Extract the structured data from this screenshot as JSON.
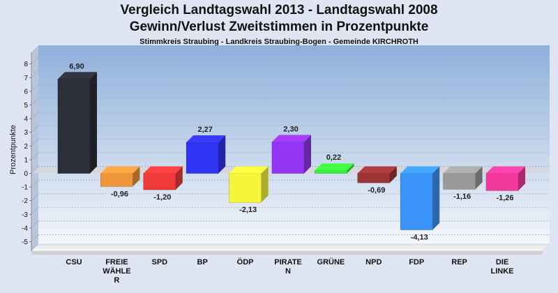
{
  "header": {
    "title_line1": "Vergleich Landtagswahl 2013 - Landtagswahl 2008",
    "title_line2": "Gewinn/Verlust Zweitstimmen in Prozentpunkte",
    "subtitle": "Stimmkreis Straubing - Landkreis Straubing-Bogen - Gemeinde KIRCHROTH"
  },
  "chart_data": {
    "type": "bar",
    "title": "Vergleich Landtagswahl 2013 - Landtagswahl 2008 / Gewinn/Verlust Zweitstimmen in Prozentpunkte",
    "subtitle": "Stimmkreis Straubing - Landkreis Straubing-Bogen - Gemeinde KIRCHROTH",
    "xlabel": "",
    "ylabel": "Prozentpunkte",
    "ylim": [
      -5.5,
      8.5
    ],
    "yticks": [
      8,
      7,
      6,
      5,
      4,
      3,
      2,
      1,
      0,
      -1,
      -2,
      -3,
      -4,
      -5
    ],
    "grid": true,
    "categories": [
      "CSU",
      "FREIE WÄHLER",
      "SPD",
      "BP",
      "ÖDP",
      "PIRATEN",
      "GRÜNE",
      "NPD",
      "FDP",
      "REP",
      "DIE LINKE"
    ],
    "category_label_lines": [
      [
        "CSU"
      ],
      [
        "FREIE",
        "WÄHLE",
        "R"
      ],
      [
        "SPD"
      ],
      [
        "BP"
      ],
      [
        "ÖDP"
      ],
      [
        "PIRATE",
        "N"
      ],
      [
        "GRÜNE"
      ],
      [
        "NPD"
      ],
      [
        "FDP"
      ],
      [
        "REP"
      ],
      [
        "DIE",
        "LINKE"
      ]
    ],
    "values": [
      6.9,
      -0.96,
      -1.2,
      2.27,
      -2.13,
      2.3,
      0.22,
      -0.69,
      -4.13,
      -1.16,
      -1.26
    ],
    "value_labels": [
      "6,90",
      "-0,96",
      "-1,20",
      "2,27",
      "-2,13",
      "2,30",
      "0,22",
      "-0,69",
      "-4,13",
      "-1,16",
      "-1,26"
    ],
    "colors": [
      "#2b2f38",
      "#f0953a",
      "#f03a3a",
      "#2f35f3",
      "#f5f53a",
      "#9435f3",
      "#3af03a",
      "#9c3535",
      "#3a94f8",
      "#9a9a9a",
      "#f33a9c"
    ]
  }
}
